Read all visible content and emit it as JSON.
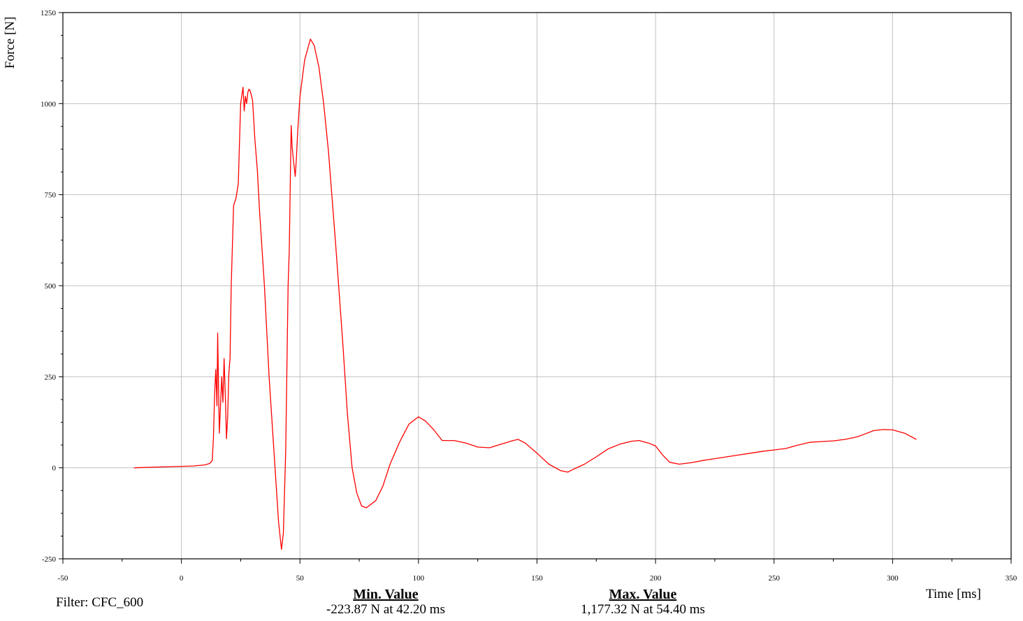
{
  "chart_data": {
    "type": "line",
    "xlabel": "Time [ms]",
    "ylabel": "Force [N]",
    "xlim": [
      -50,
      350
    ],
    "ylim": [
      -250,
      1250
    ],
    "x_ticks": [
      -50,
      0,
      50,
      100,
      150,
      200,
      250,
      300,
      350
    ],
    "y_ticks": [
      -250,
      0,
      250,
      500,
      750,
      1000,
      1250
    ],
    "grid": true,
    "line_color": "#ff0000",
    "grid_color": "#c0c0c0",
    "series": [
      {
        "x": [
          -20,
          -10,
          0,
          5,
          10,
          12,
          13,
          13.5,
          14,
          14.5,
          15,
          15.3,
          15.7,
          16,
          17,
          17.5,
          18,
          18.5,
          19,
          19.5,
          20,
          20.5,
          21,
          22,
          23,
          24,
          25,
          26,
          26.5,
          27,
          27.5,
          28,
          28.5,
          29,
          30,
          31,
          32,
          33,
          35,
          37,
          39,
          41,
          42.2,
          43,
          44,
          45,
          45.5,
          46,
          46.3,
          46.7,
          47,
          48,
          48.5,
          49,
          50,
          52,
          54.4,
          56,
          58,
          60,
          62,
          65,
          68,
          70,
          72,
          74,
          76,
          78,
          80,
          82,
          85,
          88,
          92,
          96,
          100,
          103,
          106,
          110,
          115,
          120,
          125,
          130,
          135,
          140,
          142,
          145,
          150,
          155,
          160,
          163,
          165,
          170,
          175,
          180,
          185,
          190,
          193,
          197,
          200,
          203,
          206,
          210,
          215,
          220,
          225,
          230,
          235,
          240,
          245,
          250,
          255,
          260,
          265,
          270,
          275,
          280,
          285,
          288,
          292,
          296,
          300,
          305,
          310
        ],
        "y": [
          0,
          2,
          4,
          5,
          8,
          12,
          20,
          80,
          200,
          270,
          170,
          370,
          200,
          95,
          250,
          180,
          300,
          200,
          80,
          140,
          260,
          300,
          500,
          720,
          740,
          780,
          1000,
          1045,
          980,
          1020,
          1000,
          1030,
          1040,
          1035,
          1010,
          900,
          820,
          700,
          500,
          250,
          50,
          -150,
          -223.87,
          -180,
          50,
          500,
          600,
          820,
          940,
          880,
          860,
          800,
          850,
          920,
          1020,
          1120,
          1177.32,
          1160,
          1100,
          1000,
          870,
          620,
          350,
          150,
          0,
          -70,
          -105,
          -110,
          -100,
          -90,
          -50,
          10,
          70,
          120,
          140,
          128,
          108,
          75,
          75,
          68,
          57,
          55,
          65,
          75,
          78,
          68,
          40,
          10,
          -8,
          -12,
          -5,
          10,
          30,
          52,
          65,
          73,
          75,
          68,
          60,
          35,
          15,
          10,
          14,
          20,
          25,
          30,
          35,
          40,
          45,
          49,
          53,
          62,
          70,
          72,
          74,
          78,
          85,
          92,
          102,
          105,
          104,
          95,
          78
        ]
      }
    ]
  },
  "footer": {
    "filter": "Filter: CFC_600",
    "min_title": "Min. Value",
    "min_value": "-223.87 N at 42.20 ms",
    "max_title": "Max. Value",
    "max_value": "1,177.32 N at 54.40 ms"
  }
}
